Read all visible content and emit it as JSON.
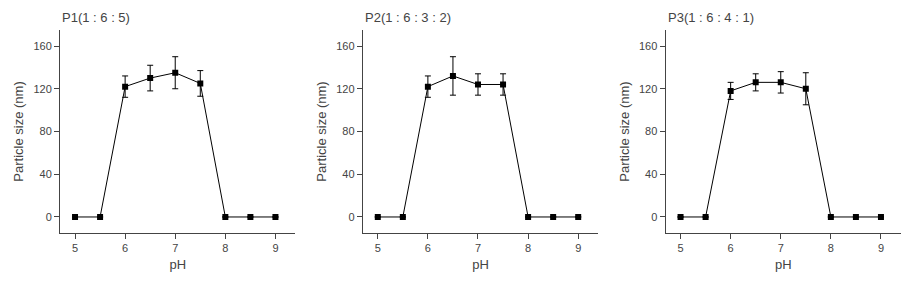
{
  "chart_data": [
    {
      "type": "line",
      "title": "P1(1 : 6 : 5)",
      "xlabel": "pH",
      "ylabel": "Particle size (nm)",
      "x": [
        5,
        5.5,
        6,
        6.5,
        7,
        7.5,
        8,
        8.5,
        9
      ],
      "series": [
        {
          "color": "#000000",
          "marker": "square",
          "line_style": "solid",
          "values": [
            0,
            0,
            122,
            130,
            135,
            125,
            0,
            0,
            0
          ],
          "errors": [
            0,
            0,
            10,
            12,
            15,
            12,
            0,
            0,
            0
          ]
        }
      ],
      "xlim": [
        4.7,
        9.4
      ],
      "xticks": [
        5,
        6,
        7,
        8,
        9
      ],
      "ylim": [
        -15,
        175
      ],
      "yticks": [
        0,
        40,
        80,
        120,
        160
      ],
      "grid": false
    },
    {
      "type": "line",
      "title": "P2(1 : 6 : 3 : 2)",
      "xlabel": "pH",
      "ylabel": "Particle size (nm)",
      "x": [
        5,
        5.5,
        6,
        6.5,
        7,
        7.5,
        8,
        8.5,
        9
      ],
      "series": [
        {
          "color": "#000000",
          "marker": "square",
          "line_style": "solid",
          "values": [
            0,
            0,
            122,
            132,
            124,
            124,
            0,
            0,
            0
          ],
          "errors": [
            0,
            0,
            10,
            18,
            10,
            10,
            0,
            0,
            0
          ]
        }
      ],
      "xlim": [
        4.7,
        9.4
      ],
      "xticks": [
        5,
        6,
        7,
        8,
        9
      ],
      "ylim": [
        -15,
        175
      ],
      "yticks": [
        0,
        40,
        80,
        120,
        160
      ],
      "grid": false
    },
    {
      "type": "line",
      "title": "P3(1 : 6 : 4 : 1)",
      "xlabel": "pH",
      "ylabel": "Particle size (nm)",
      "x": [
        5,
        5.5,
        6,
        6.5,
        7,
        7.5,
        8,
        8.5,
        9
      ],
      "series": [
        {
          "color": "#000000",
          "marker": "square",
          "line_style": "solid",
          "values": [
            0,
            0,
            118,
            126,
            126,
            120,
            0,
            0,
            0
          ],
          "errors": [
            0,
            0,
            8,
            8,
            10,
            15,
            0,
            0,
            0
          ]
        }
      ],
      "xlim": [
        4.7,
        9.4
      ],
      "xticks": [
        5,
        6,
        7,
        8,
        9
      ],
      "ylim": [
        -15,
        175
      ],
      "yticks": [
        0,
        40,
        80,
        120,
        160
      ],
      "grid": false
    }
  ]
}
